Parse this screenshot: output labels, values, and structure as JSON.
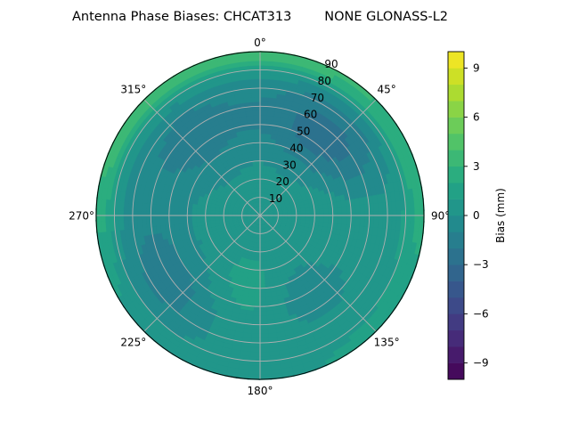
{
  "chart_data": {
    "type": "heatmap",
    "projection": "polar",
    "title": "Antenna Phase Biases: CHCAT313        NONE GLONASS-L2",
    "theta_zero_location": "top",
    "theta_direction": "clockwise",
    "theta_ticks": [
      {
        "deg": 0,
        "label": "0°"
      },
      {
        "deg": 45,
        "label": "45°"
      },
      {
        "deg": 90,
        "label": "90°"
      },
      {
        "deg": 135,
        "label": "135°"
      },
      {
        "deg": 180,
        "label": "180°"
      },
      {
        "deg": 225,
        "label": "225°"
      },
      {
        "deg": 270,
        "label": "270°"
      },
      {
        "deg": 315,
        "label": "315°"
      }
    ],
    "r_ticks": [
      10,
      20,
      30,
      40,
      50,
      60,
      70,
      80,
      90
    ],
    "r_tick_labels": [
      "10",
      "20",
      "30",
      "40",
      "50",
      "60",
      "70",
      "80",
      "90"
    ],
    "rlim": [
      0,
      90
    ],
    "grid": true,
    "colorbar": {
      "label": "Bias (mm)",
      "cmap": "viridis",
      "range": [
        -10,
        10
      ],
      "levels": 20,
      "ticks": [
        -9,
        -6,
        -3,
        0,
        3,
        6,
        9
      ],
      "tick_labels": [
        "−9",
        "−6",
        "−3",
        "0",
        "3",
        "6",
        "9"
      ]
    },
    "field": {
      "description_units": "mm",
      "base": 0.5,
      "features": [
        {
          "theta": 40,
          "r": 55,
          "sigma_r": 16,
          "sigma_theta": 28,
          "amp": -3.2
        },
        {
          "theta": 320,
          "r": 55,
          "sigma_r": 18,
          "sigma_theta": 25,
          "amp": -2.0
        },
        {
          "theta": 230,
          "r": 60,
          "sigma_r": 15,
          "sigma_theta": 30,
          "amp": -2.4
        },
        {
          "theta": 150,
          "r": 50,
          "sigma_r": 14,
          "sigma_theta": 25,
          "amp": -1.6
        },
        {
          "theta": 20,
          "r": 88,
          "sigma_r": 6,
          "sigma_theta": 70,
          "amp": 3.0
        },
        {
          "theta": 300,
          "r": 88,
          "sigma_r": 6,
          "sigma_theta": 35,
          "amp": 1.8
        },
        {
          "theta": 190,
          "r": 50,
          "sigma_r": 18,
          "sigma_theta": 25,
          "amp": 1.8
        },
        {
          "theta": 95,
          "r": 45,
          "sigma_r": 20,
          "sigma_theta": 30,
          "amp": 0.8
        }
      ]
    }
  }
}
